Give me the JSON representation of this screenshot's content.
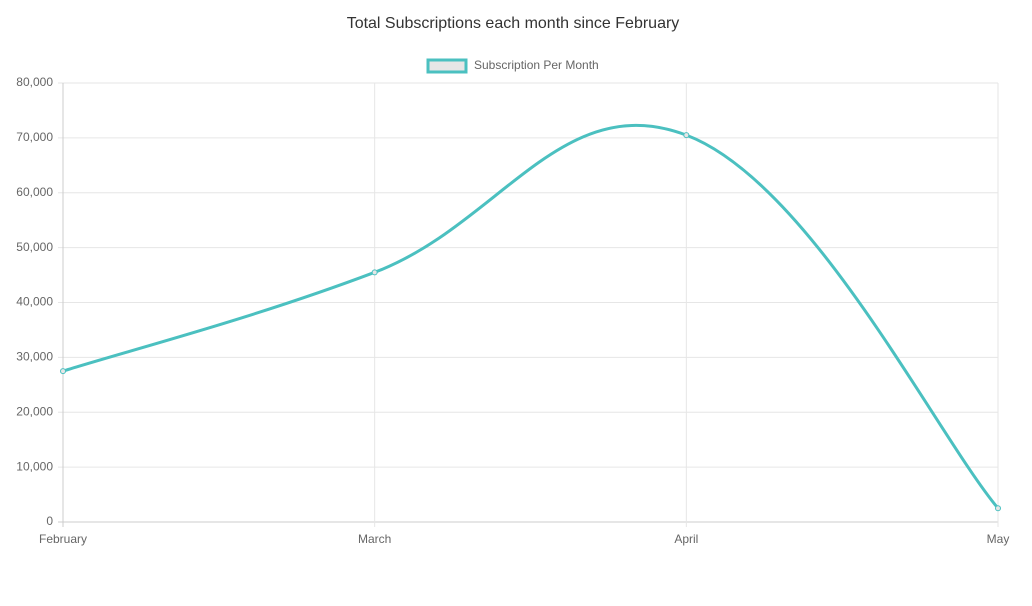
{
  "chart_data": {
    "type": "line",
    "title": "Total Subscriptions each month since February",
    "categories": [
      "February",
      "March",
      "April",
      "May"
    ],
    "series": [
      {
        "name": "Subscription Per Month",
        "color": "#4bc0c0",
        "legend_fill": "#e6e6e6",
        "values": [
          27500,
          45500,
          70500,
          2500
        ]
      }
    ],
    "ylim": [
      0,
      80000
    ],
    "yticks": [
      0,
      {
        "value": 10000,
        "label": "10,000"
      },
      {
        "value": 20000,
        "label": "20,000"
      },
      {
        "value": 30000,
        "label": "30,000"
      },
      {
        "value": 40000,
        "label": "40,000"
      },
      {
        "value": 50000,
        "label": "50,000"
      },
      {
        "value": 60000,
        "label": "60,000"
      },
      {
        "value": 70000,
        "label": "70,000"
      },
      {
        "value": 80000,
        "label": "80,000"
      }
    ],
    "grid": true,
    "legend": "top"
  }
}
